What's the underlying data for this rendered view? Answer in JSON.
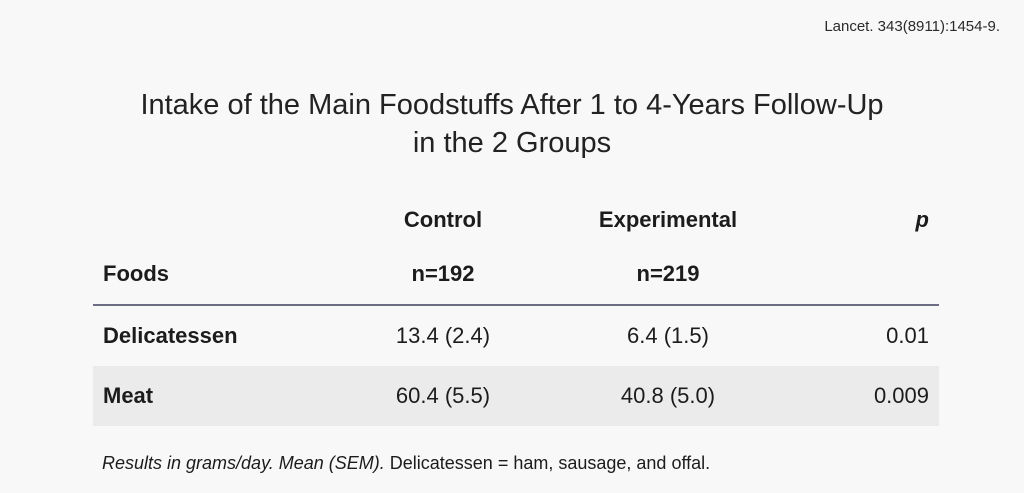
{
  "citation": "Lancet. 343(8911):1454-9.",
  "title": {
    "line1": "Intake of the Main Foodstuffs After 1 to 4-Years Follow-Up",
    "line2": "in the 2 Groups"
  },
  "table": {
    "headers": {
      "control": "Control",
      "experimental": "Experimental",
      "p": "p"
    },
    "n_row": {
      "label": "Foods",
      "control": "n=192",
      "experimental": "n=219"
    },
    "rows": [
      {
        "food": "Delicatessen",
        "control": "13.4 (2.4)",
        "experimental": "6.4 (1.5)",
        "p": "0.01"
      },
      {
        "food": "Meat",
        "control": "60.4 (5.5)",
        "experimental": "40.8 (5.0)",
        "p": "0.009"
      }
    ]
  },
  "footnote": {
    "italic": "Results in grams/day. Mean (SEM).",
    "plain": " Delicatessen = ham, sausage, and offal."
  }
}
